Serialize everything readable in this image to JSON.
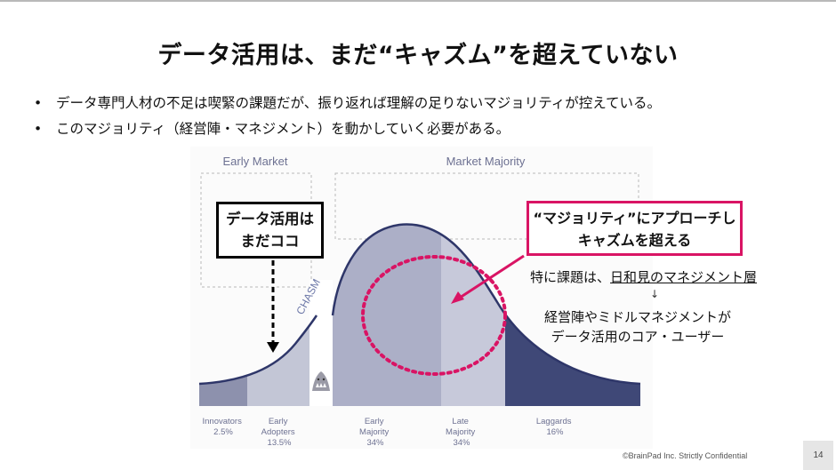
{
  "title": "データ活用は、まだ“キャズム”を超えていない",
  "bullets": [
    "データ専門人材の不足は喫緊の課題だが、振り返れば理解の足りないマジョリティが控えている。",
    "このマジョリティ（経営陣・マネジメント）を動かしていく必要がある。"
  ],
  "bullet_glyph": "•",
  "diagram": {
    "group_labels": {
      "early_market": "Early Market",
      "market_majority": "Market Majority"
    },
    "chasm_label": "CHASM",
    "segments": [
      {
        "name": "Innovators",
        "pct": "2.5%",
        "share": 2.5,
        "color": "#8d91ad"
      },
      {
        "name": "Early Adopters",
        "pct": "13.5%",
        "share": 13.5,
        "color": "#c3c6d6"
      },
      {
        "name": "Early Majority",
        "pct": "34%",
        "share": 34,
        "color": "#acafc7"
      },
      {
        "name": "Late Majority",
        "pct": "34%",
        "share": 34,
        "color": "#c7c9da"
      },
      {
        "name": "Laggards",
        "pct": "16%",
        "share": 16,
        "color": "#3f4877"
      }
    ],
    "segment_label_lines": [
      [
        "Innovators",
        "2.5%"
      ],
      [
        "Early",
        "Adopters",
        "13.5%"
      ],
      [
        "Early",
        "Majority",
        "34%"
      ],
      [
        "Late",
        "Majority",
        "34%"
      ],
      [
        "Laggards",
        "16%"
      ]
    ],
    "curve_color": "#2e3669",
    "accent_pink": "#d91464"
  },
  "callout_current": {
    "line1": "データ活用は",
    "line2": "まだココ"
  },
  "callout_target": {
    "line1": "“マジョリティ”にアプローチし",
    "line2": "キャズムを超える"
  },
  "note_issue": {
    "prefix": "特に課題は、",
    "underlined": "日和見のマネジメント層"
  },
  "note_arrow": "↓",
  "note_users": {
    "line1": "経営陣やミドルマネジメントが",
    "line2": "データ活用のコア・ユーザー"
  },
  "footer": {
    "copyright": "©BrainPad Inc. Strictly Confidential",
    "page_number": "14"
  }
}
